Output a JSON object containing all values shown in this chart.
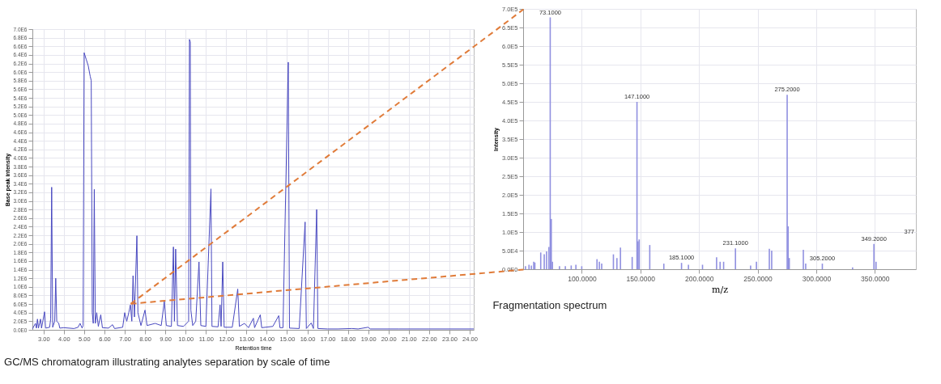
{
  "chart_data": [
    {
      "type": "line",
      "xlabel": "Retention time",
      "ylabel": "Base peak intensity",
      "annotations": [
        "GC/MS chromatogram illustrating analytes separation by scale of time"
      ],
      "grid": true,
      "xlim": [
        2.45,
        24.2
      ],
      "xticks": [
        {
          "value": 3,
          "label": "3.00"
        },
        {
          "value": 4,
          "label": "4.00"
        },
        {
          "value": 5,
          "label": "5.00"
        },
        {
          "value": 6,
          "label": "6.00"
        },
        {
          "value": 7,
          "label": "7.00"
        },
        {
          "value": 8,
          "label": "8.00"
        },
        {
          "value": 9,
          "label": "9.00"
        },
        {
          "value": 10,
          "label": "10.00"
        },
        {
          "value": 11,
          "label": "11.00"
        },
        {
          "value": 12,
          "label": "12.00"
        },
        {
          "value": 13,
          "label": "13.00"
        },
        {
          "value": 14,
          "label": "14.00"
        },
        {
          "value": 15,
          "label": "15.00"
        },
        {
          "value": 16,
          "label": "16.00"
        },
        {
          "value": 17,
          "label": "17.00"
        },
        {
          "value": 18,
          "label": "18.00"
        },
        {
          "value": 19,
          "label": "19.00"
        },
        {
          "value": 20,
          "label": "20.00"
        },
        {
          "value": 21,
          "label": "21.00"
        },
        {
          "value": 22,
          "label": "22.00"
        },
        {
          "value": 23,
          "label": "23.00"
        },
        {
          "value": 24,
          "label": "24.00"
        }
      ],
      "ylim": [
        0,
        7000000
      ],
      "yticks": [
        {
          "value": 0,
          "label": "0.0E0"
        },
        {
          "value": 200000,
          "label": "2.0E5"
        },
        {
          "value": 400000,
          "label": "4.0E5"
        },
        {
          "value": 600000,
          "label": "6.0E5"
        },
        {
          "value": 800000,
          "label": "8.0E5"
        },
        {
          "value": 1000000,
          "label": "1.0E6"
        },
        {
          "value": 1200000,
          "label": "1.2E6"
        },
        {
          "value": 1400000,
          "label": "1.4E6"
        },
        {
          "value": 1600000,
          "label": "1.6E6"
        },
        {
          "value": 1800000,
          "label": "1.8E6"
        },
        {
          "value": 2000000,
          "label": "2.0E6"
        },
        {
          "value": 2200000,
          "label": "2.2E6"
        },
        {
          "value": 2400000,
          "label": "2.4E6"
        },
        {
          "value": 2600000,
          "label": "2.6E6"
        },
        {
          "value": 2800000,
          "label": "2.8E6"
        },
        {
          "value": 3000000,
          "label": "3.0E6"
        },
        {
          "value": 3200000,
          "label": "3.2E6"
        },
        {
          "value": 3400000,
          "label": "3.4E6"
        },
        {
          "value": 3600000,
          "label": "3.6E6"
        },
        {
          "value": 3800000,
          "label": "3.8E6"
        },
        {
          "value": 4000000,
          "label": "4.0E6"
        },
        {
          "value": 4200000,
          "label": "4.2E6"
        },
        {
          "value": 4400000,
          "label": "4.4E6"
        },
        {
          "value": 4600000,
          "label": "4.6E6"
        },
        {
          "value": 4800000,
          "label": "4.8E6"
        },
        {
          "value": 5000000,
          "label": "5.0E6"
        },
        {
          "value": 5200000,
          "label": "5.2E6"
        },
        {
          "value": 5400000,
          "label": "5.4E6"
        },
        {
          "value": 5600000,
          "label": "5.6E6"
        },
        {
          "value": 5800000,
          "label": "5.8E6"
        },
        {
          "value": 6000000,
          "label": "6.0E6"
        },
        {
          "value": 6200000,
          "label": "6.2E6"
        },
        {
          "value": 6400000,
          "label": "6.4E6"
        },
        {
          "value": 6600000,
          "label": "6.6E6"
        },
        {
          "value": 6800000,
          "label": "6.8E6"
        },
        {
          "value": 7000000,
          "label": "7.0E6"
        }
      ],
      "series": [
        {
          "color": "#4848c0",
          "x": [
            2.45,
            2.6,
            2.65,
            2.7,
            2.75,
            2.85,
            2.9,
            3.05,
            3.1,
            3.3,
            3.35,
            3.4,
            3.45,
            3.55,
            3.6,
            3.65,
            3.75,
            3.8,
            4.0,
            4.5,
            4.7,
            4.8,
            4.9,
            4.95,
            5.0,
            5.1,
            5.2,
            5.3,
            5.35,
            5.4,
            5.45,
            5.5,
            5.55,
            5.62,
            5.7,
            5.82,
            5.9,
            6.2,
            6.4,
            6.5,
            6.9,
            7.0,
            7.1,
            7.2,
            7.28,
            7.35,
            7.41,
            7.48,
            7.6,
            7.65,
            7.8,
            8.0,
            8.1,
            8.5,
            8.8,
            8.95,
            9.05,
            9.3,
            9.4,
            9.45,
            9.51,
            9.6,
            9.9,
            10.15,
            10.19,
            10.23,
            10.26,
            10.35,
            10.5,
            10.66,
            10.75,
            11.0,
            11.25,
            11.3,
            11.6,
            11.7,
            11.75,
            11.83,
            11.9,
            12.3,
            12.57,
            12.65,
            12.9,
            13.1,
            13.34,
            13.4,
            13.68,
            13.75,
            14.3,
            14.59,
            14.65,
            14.8,
            15.06,
            15.12,
            15.6,
            15.89,
            15.95,
            16.19,
            16.3,
            16.46,
            16.52,
            17.0,
            17.5,
            18.2,
            18.5,
            19.0,
            19.1,
            20.5,
            22.0,
            24.2
          ],
          "values": [
            20000,
            150000,
            40000,
            250000,
            40000,
            250000,
            40000,
            420000,
            40000,
            60000,
            250000,
            3320000,
            60000,
            200000,
            1200000,
            200000,
            150000,
            40000,
            50000,
            30000,
            60000,
            150000,
            40000,
            100000,
            6450000,
            6300000,
            6150000,
            5900000,
            5800000,
            400000,
            150000,
            3270000,
            150000,
            400000,
            80000,
            350000,
            50000,
            40000,
            120000,
            30000,
            60000,
            400000,
            200000,
            400000,
            580000,
            200000,
            1260000,
            300000,
            2190000,
            400000,
            100000,
            460000,
            100000,
            150000,
            100000,
            660000,
            100000,
            80000,
            1930000,
            200000,
            1880000,
            100000,
            80000,
            200000,
            6760000,
            6700000,
            460000,
            100000,
            200000,
            1580000,
            100000,
            80000,
            3280000,
            80000,
            70000,
            580000,
            80000,
            1580000,
            60000,
            60000,
            950000,
            80000,
            150000,
            50000,
            270000,
            50000,
            350000,
            50000,
            80000,
            330000,
            50000,
            50000,
            6230000,
            40000,
            30000,
            2510000,
            30000,
            160000,
            30000,
            2800000,
            30000,
            20000,
            20000,
            30000,
            20000,
            60000,
            20000,
            20000,
            20000,
            20000
          ]
        }
      ]
    },
    {
      "type": "bar",
      "xlabel": "m/z",
      "ylabel": "Intensity",
      "annotations": [
        "Fragmentation spectrum",
        {
          "text": "73.1000",
          "x": 73.1,
          "y": 677000
        },
        {
          "text": "147.1000",
          "x": 147.1,
          "y": 450000
        },
        {
          "text": "185.1000",
          "x": 185.1,
          "y": 17000
        },
        {
          "text": "231.1000",
          "x": 231.1,
          "y": 56000
        },
        {
          "text": "275.2000",
          "x": 275.2,
          "y": 469000
        },
        {
          "text": "305.2000",
          "x": 305.2,
          "y": 15000
        },
        {
          "text": "349.2000",
          "x": 349.2,
          "y": 68000
        },
        "377"
      ],
      "grid": true,
      "xlim": [
        50,
        385
      ],
      "xticks": [
        {
          "value": 100,
          "label": "100.0000"
        },
        {
          "value": 150,
          "label": "150.0000"
        },
        {
          "value": 200,
          "label": "200.0000"
        },
        {
          "value": 250,
          "label": "250.0000"
        },
        {
          "value": 300,
          "label": "300.0000"
        },
        {
          "value": 350,
          "label": "350.0000"
        }
      ],
      "ylim": [
        0,
        700000
      ],
      "yticks": [
        {
          "value": 0,
          "label": "0.0E0"
        },
        {
          "value": 50000,
          "label": "5.0E4"
        },
        {
          "value": 100000,
          "label": "1.0E5"
        },
        {
          "value": 150000,
          "label": "1.5E5"
        },
        {
          "value": 200000,
          "label": "2.0E5"
        },
        {
          "value": 250000,
          "label": "2.5E5"
        },
        {
          "value": 300000,
          "label": "3.0E5"
        },
        {
          "value": 350000,
          "label": "3.5E5"
        },
        {
          "value": 400000,
          "label": "4.0E5"
        },
        {
          "value": 450000,
          "label": "4.5E5"
        },
        {
          "value": 500000,
          "label": "5.0E5"
        },
        {
          "value": 550000,
          "label": "5.5E5"
        },
        {
          "value": 600000,
          "label": "6.0E5"
        },
        {
          "value": 650000,
          "label": "6.5E5"
        },
        {
          "value": 700000,
          "label": "7.0E5"
        }
      ],
      "series": [
        {
          "color": "#9090e0",
          "x": [
            52,
            55,
            57,
            59,
            60,
            65,
            68,
            70,
            72,
            73.1,
            74,
            75,
            81,
            86,
            91,
            95,
            100,
            113,
            115,
            117,
            127,
            130,
            133,
            143,
            147.1,
            148,
            149,
            158,
            170,
            185.1,
            191,
            203,
            215,
            218,
            221,
            231.1,
            244,
            249,
            260,
            262,
            275.2,
            276,
            277,
            289,
            291,
            305.2,
            331,
            349.2,
            351
          ],
          "values": [
            8000,
            12000,
            10000,
            20000,
            18000,
            45000,
            40000,
            48000,
            60000,
            677000,
            135000,
            20000,
            8000,
            8000,
            10000,
            12000,
            8000,
            27000,
            20000,
            15000,
            40000,
            30000,
            58000,
            33000,
            450000,
            75000,
            80000,
            65000,
            15000,
            17000,
            12000,
            12000,
            32000,
            20000,
            20000,
            56000,
            10000,
            20000,
            55000,
            50000,
            469000,
            115000,
            30000,
            52000,
            15000,
            15000,
            5000,
            68000,
            20000
          ]
        }
      ]
    }
  ]
}
